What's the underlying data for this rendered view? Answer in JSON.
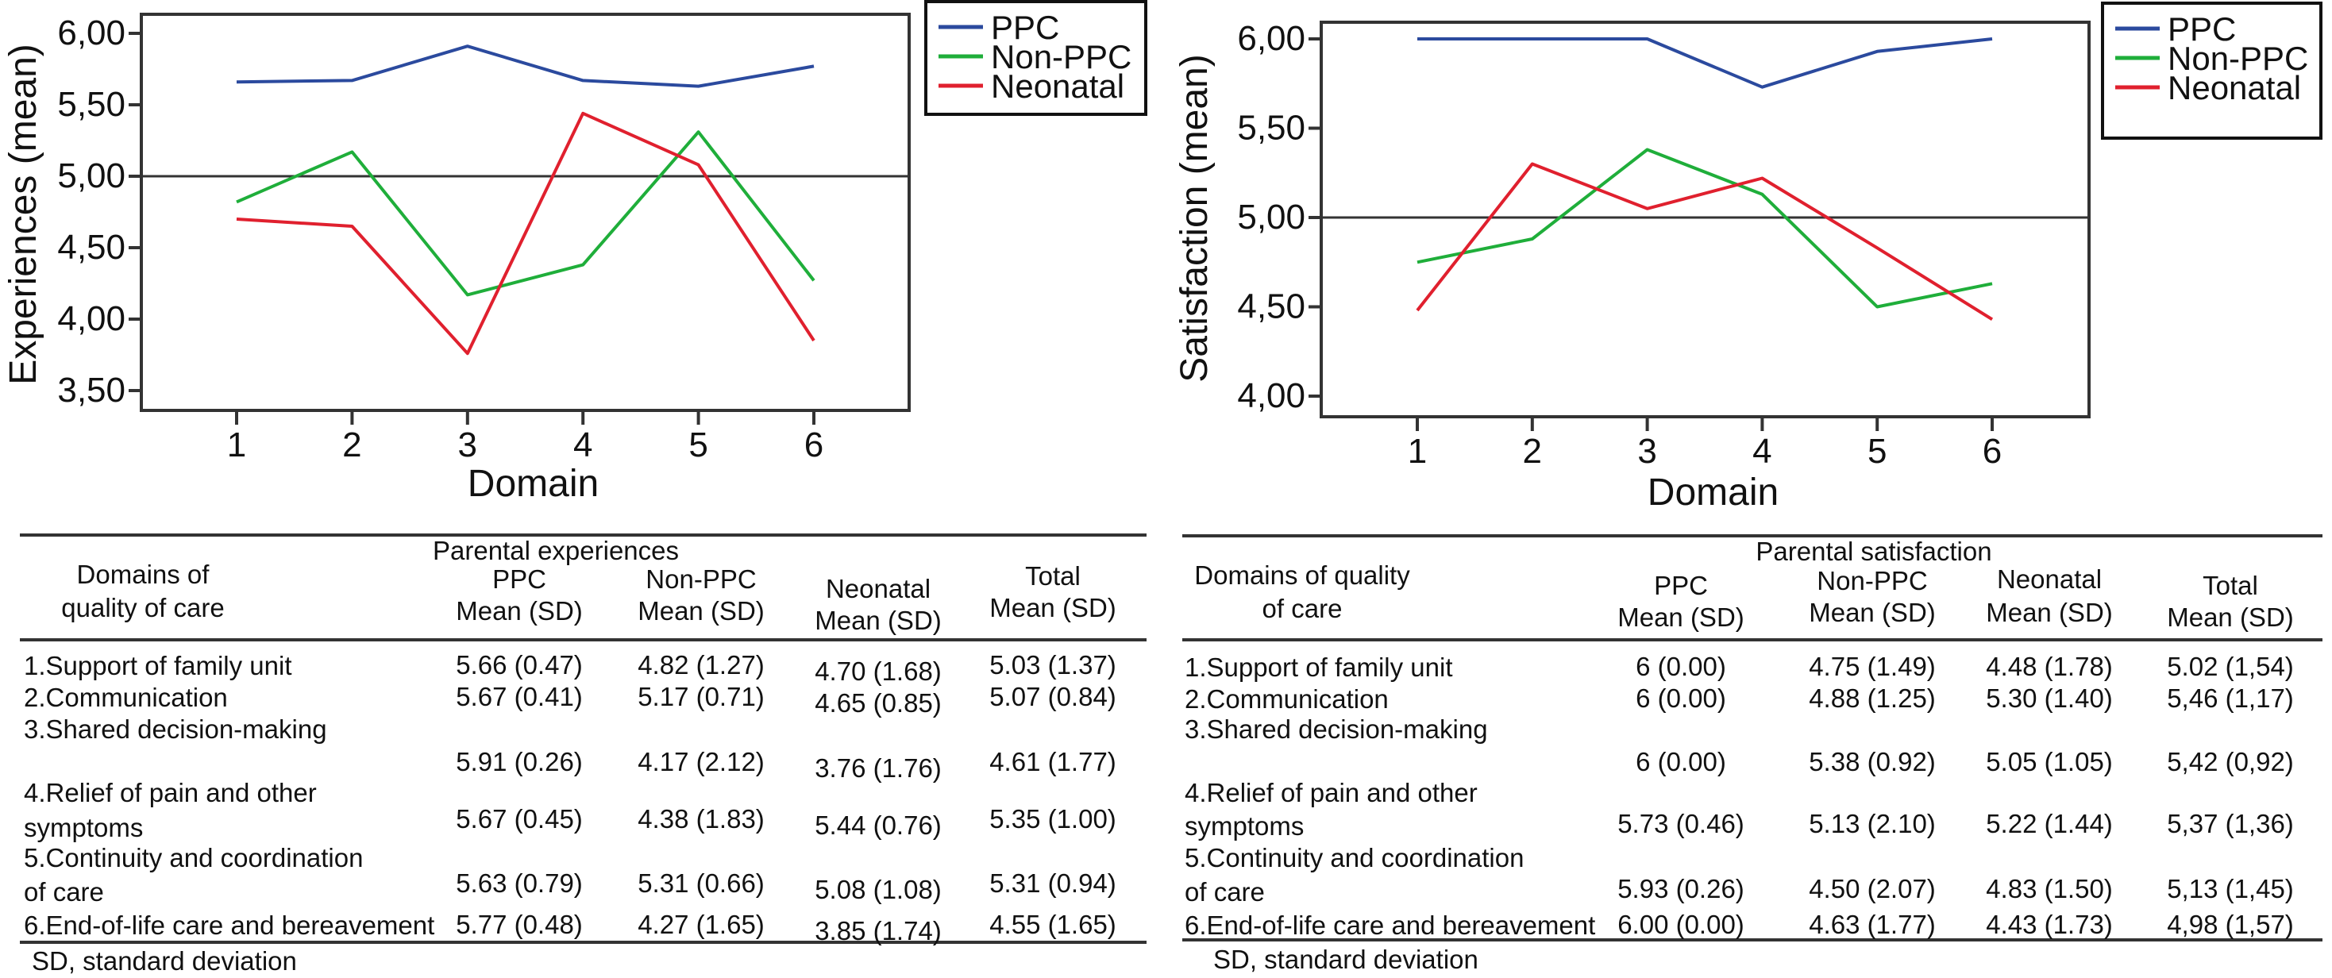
{
  "chart_data": [
    {
      "type": "line",
      "title": "",
      "xlabel": "Domain",
      "ylabel": "Experiences  (mean)",
      "x": [
        1,
        2,
        3,
        4,
        5,
        6
      ],
      "x_tick_labels": [
        "1",
        "2",
        "3",
        "4",
        "5",
        "6"
      ],
      "y_ticks": [
        6.0,
        5.5,
        5.0,
        4.5,
        4.0,
        3.5
      ],
      "y_tick_labels": [
        "6,00",
        "5,50",
        "5,00",
        "4,50",
        "4,00",
        "3,50"
      ],
      "ylim": [
        3.42,
        6.12
      ],
      "reference_line": 5.0,
      "grid": false,
      "legend_position": "top-right (outside)",
      "series": [
        {
          "name": "PPC",
          "color": "#2b4a9e",
          "values": [
            5.66,
            5.67,
            5.91,
            5.67,
            5.63,
            5.77
          ]
        },
        {
          "name": "Non-PPC",
          "color": "#1fae3a",
          "values": [
            4.82,
            5.17,
            4.17,
            4.38,
            5.31,
            4.27
          ]
        },
        {
          "name": "Neonatal",
          "color": "#e0202e",
          "values": [
            4.7,
            4.65,
            3.76,
            5.44,
            5.08,
            3.85
          ]
        }
      ]
    },
    {
      "type": "line",
      "title": "",
      "xlabel": "Domain",
      "ylabel": "Satisfaction (mean)",
      "x": [
        1,
        2,
        3,
        4,
        5,
        6
      ],
      "x_tick_labels": [
        "1",
        "2",
        "3",
        "4",
        "5",
        "6"
      ],
      "y_ticks": [
        6.0,
        5.5,
        5.0,
        4.5,
        4.0
      ],
      "y_tick_labels": [
        "6,00",
        "5,50",
        "5,00",
        "4,50",
        "4,00"
      ],
      "ylim": [
        3.88,
        6.1
      ],
      "reference_line": 5.0,
      "grid": false,
      "legend_position": "top-right (outside)",
      "series": [
        {
          "name": "PPC",
          "color": "#2b4a9e",
          "values": [
            6.0,
            6.0,
            6.0,
            5.73,
            5.93,
            6.0
          ]
        },
        {
          "name": "Non-PPC",
          "color": "#1fae3a",
          "values": [
            4.75,
            4.88,
            5.38,
            5.13,
            4.5,
            4.63
          ]
        },
        {
          "name": "Neonatal",
          "color": "#e0202e",
          "values": [
            4.48,
            5.3,
            5.05,
            5.22,
            4.83,
            4.43
          ]
        }
      ]
    }
  ],
  "tables": [
    {
      "group_title": "Parental experiences",
      "domain_header": [
        "Domains of",
        "quality of care"
      ],
      "columns": [
        {
          "name": "PPC",
          "sub": "Mean (SD)"
        },
        {
          "name": "Non-PPC",
          "sub": "Mean (SD)"
        },
        {
          "name": "Neonatal",
          "sub": "Mean (SD)"
        },
        {
          "name": "Total",
          "sub": "Mean (SD)"
        }
      ],
      "rows": [
        {
          "label": [
            "1.Support of family unit"
          ],
          "values": [
            "5.66 (0.47)",
            "4.82 (1.27)",
            "4.70 (1.68)",
            "5.03 (1.37)"
          ]
        },
        {
          "label": [
            "2.Communication"
          ],
          "values": [
            "5.67 (0.41)",
            "5.17 (0.71)",
            "4.65 (0.85)",
            "5.07 (0.84)"
          ]
        },
        {
          "label": [
            "3.Shared decision-making"
          ],
          "values": [
            "5.91 (0.26)",
            "4.17 (2.12)",
            "3.76 (1.76)",
            "4.61 (1.77)"
          ]
        },
        {
          "label": [
            "4.Relief of pain and other",
            "symptoms"
          ],
          "values": [
            "5.67 (0.45)",
            "4.38 (1.83)",
            "5.44 (0.76)",
            "5.35 (1.00)"
          ]
        },
        {
          "label": [
            "5.Continuity and coordination",
            "of care"
          ],
          "values": [
            "5.63 (0.79)",
            "5.31 (0.66)",
            "5.08 (1.08)",
            "5.31 (0.94)"
          ]
        },
        {
          "label": [
            "6.End-of-life care and bereavement"
          ],
          "values": [
            "5.77 (0.48)",
            "4.27 (1.65)",
            "3.85 (1.74)",
            "4.55 (1.65)"
          ]
        }
      ],
      "footnote": "SD, standard deviation"
    },
    {
      "group_title": "Parental satisfaction",
      "domain_header": [
        "Domains of quality",
        "of care"
      ],
      "columns": [
        {
          "name": "PPC",
          "sub": "Mean (SD)"
        },
        {
          "name": "Non-PPC",
          "sub": "Mean (SD)"
        },
        {
          "name": "Neonatal",
          "sub": "Mean (SD)"
        },
        {
          "name": "Total",
          "sub": "Mean (SD)"
        }
      ],
      "rows": [
        {
          "label": [
            "1.Support of family unit"
          ],
          "values": [
            "6 (0.00)",
            "4.75 (1.49)",
            "4.48 (1.78)",
            "5.02 (1,54)"
          ]
        },
        {
          "label": [
            "2.Communication"
          ],
          "values": [
            "6 (0.00)",
            "4.88 (1.25)",
            "5.30 (1.40)",
            "5,46 (1,17)"
          ]
        },
        {
          "label": [
            "3.Shared decision-making"
          ],
          "values": [
            "6 (0.00)",
            "5.38 (0.92)",
            "5.05 (1.05)",
            "5,42 (0,92)"
          ]
        },
        {
          "label": [
            "4.Relief of pain and other",
            "symptoms"
          ],
          "values": [
            "5.73 (0.46)",
            "5.13 (2.10)",
            "5.22 (1.44)",
            "5,37 (1,36)"
          ]
        },
        {
          "label": [
            "5.Continuity and coordination",
            "of care"
          ],
          "values": [
            "5.93 (0.26)",
            "4.50 (2.07)",
            "4.83 (1.50)",
            "5,13 (1,45)"
          ]
        },
        {
          "label": [
            "6.End-of-life care and bereavement"
          ],
          "values": [
            "6.00 (0.00)",
            "4.63 (1.77)",
            "4.43 (1.73)",
            "4,98 (1,57)"
          ]
        }
      ],
      "footnote": "SD, standard deviation"
    }
  ]
}
